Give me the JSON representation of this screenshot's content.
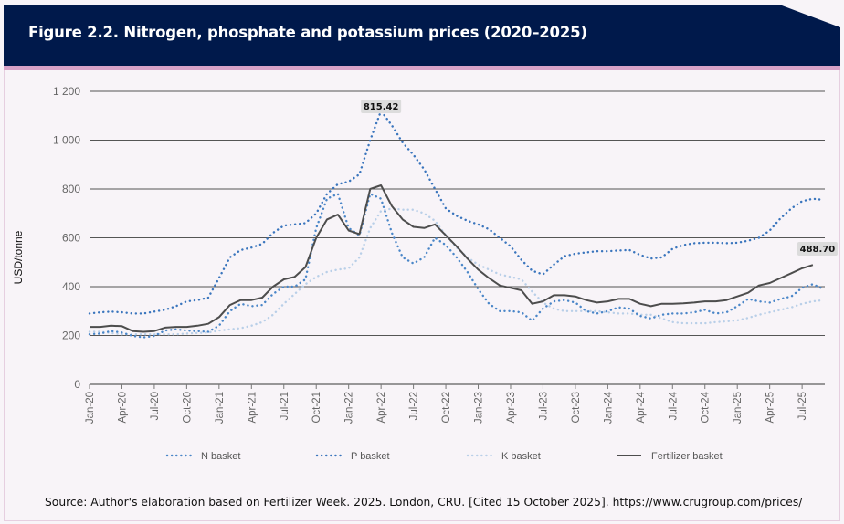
{
  "header": {
    "title": "Figure 2.2. Nitrogen, phosphate and potassium prices (2020–2025)"
  },
  "source": "Source: Author's elaboration based on Fertilizer Week. 2025. London, CRU. [Cited 15 October 2025]. https://www.crugroup.com/prices/",
  "chart_data": {
    "type": "line",
    "title": "Figure 2.2. Nitrogen, phosphate and potassium prices (2020–2025)",
    "ylabel": "USD/tonne",
    "xlabel": "",
    "ylim": [
      0,
      1200
    ],
    "yticks": [
      0,
      200,
      400,
      600,
      800,
      1000,
      1200
    ],
    "ytick_labels": [
      "0",
      "200",
      "400",
      "600",
      "800",
      "1 000",
      "1 200"
    ],
    "grid": "horizontal",
    "legend": "bottom",
    "x": [
      "Jan-20",
      "Feb-20",
      "Mar-20",
      "Apr-20",
      "May-20",
      "Jun-20",
      "Jul-20",
      "Aug-20",
      "Sep-20",
      "Oct-20",
      "Nov-20",
      "Dec-20",
      "Jan-21",
      "Feb-21",
      "Mar-21",
      "Apr-21",
      "May-21",
      "Jun-21",
      "Jul-21",
      "Aug-21",
      "Sep-21",
      "Oct-21",
      "Nov-21",
      "Dec-21",
      "Jan-22",
      "Feb-22",
      "Mar-22",
      "Apr-22",
      "May-22",
      "Jun-22",
      "Jul-22",
      "Aug-22",
      "Sep-22",
      "Oct-22",
      "Nov-22",
      "Dec-22",
      "Jan-23",
      "Feb-23",
      "Mar-23",
      "Apr-23",
      "May-23",
      "Jun-23",
      "Jul-23",
      "Aug-23",
      "Sep-23",
      "Oct-23",
      "Nov-23",
      "Dec-23",
      "Jan-24",
      "Feb-24",
      "Mar-24",
      "Apr-24",
      "May-24",
      "Jun-24",
      "Jul-24",
      "Aug-24",
      "Sep-24",
      "Oct-24",
      "Nov-24",
      "Dec-24",
      "Jan-25",
      "Feb-25",
      "Mar-25",
      "Apr-25",
      "May-25",
      "Jun-25",
      "Jul-25",
      "Aug-25",
      "Sep-25"
    ],
    "xtick_labels": [
      "Jan-20",
      "Apr-20",
      "Jul-20",
      "Oct-20",
      "Jan-21",
      "Apr-21",
      "Jul-21",
      "Oct-21",
      "Jan-22",
      "Apr-22",
      "Jul-22",
      "Oct-22",
      "Jan-23",
      "Apr-23",
      "Jul-23",
      "Oct-23",
      "Jan-24",
      "Apr-24",
      "Jul-24",
      "Oct-24",
      "Jan-25",
      "Apr-25",
      "Jul-25"
    ],
    "series": [
      {
        "name": "N basket",
        "color": "#4a86c8",
        "style": "dotted",
        "values": [
          205,
          208,
          218,
          212,
          198,
          192,
          198,
          220,
          225,
          220,
          218,
          215,
          240,
          300,
          330,
          320,
          325,
          370,
          400,
          400,
          430,
          640,
          760,
          780,
          640,
          610,
          780,
          760,
          620,
          520,
          495,
          520,
          600,
          570,
          520,
          460,
          390,
          330,
          300,
          300,
          295,
          260,
          310,
          340,
          345,
          335,
          300,
          290,
          300,
          315,
          310,
          280,
          270,
          285,
          290,
          290,
          295,
          305,
          290,
          295,
          320,
          350,
          340,
          335,
          350,
          360,
          395,
          410,
          390
        ]
      },
      {
        "name": "P basket",
        "color": "#3a75bd",
        "style": "dotted",
        "values": [
          290,
          295,
          298,
          295,
          290,
          290,
          298,
          305,
          320,
          340,
          345,
          355,
          435,
          520,
          550,
          560,
          575,
          620,
          650,
          655,
          660,
          700,
          780,
          820,
          830,
          860,
          1000,
          1120,
          1060,
          990,
          940,
          880,
          800,
          720,
          690,
          670,
          655,
          635,
          600,
          565,
          510,
          465,
          450,
          490,
          525,
          535,
          540,
          545,
          545,
          548,
          550,
          530,
          515,
          520,
          555,
          570,
          578,
          580,
          580,
          578,
          580,
          588,
          600,
          630,
          680,
          720,
          750,
          760,
          755
        ]
      },
      {
        "name": "K basket",
        "color": "#b9cfe8",
        "style": "dotted",
        "values": [
          215,
          215,
          210,
          205,
          205,
          205,
          205,
          205,
          205,
          208,
          210,
          212,
          220,
          225,
          230,
          240,
          255,
          285,
          330,
          370,
          410,
          440,
          460,
          470,
          475,
          520,
          640,
          710,
          720,
          715,
          715,
          700,
          670,
          610,
          560,
          520,
          490,
          470,
          450,
          440,
          430,
          380,
          335,
          310,
          300,
          300,
          300,
          300,
          295,
          290,
          290,
          285,
          285,
          270,
          255,
          250,
          250,
          250,
          255,
          258,
          262,
          272,
          285,
          295,
          305,
          315,
          330,
          340,
          345
        ]
      },
      {
        "name": "Fertilizer basket",
        "color": "#4d4d4d",
        "style": "solid",
        "values": [
          235,
          235,
          240,
          238,
          218,
          215,
          218,
          232,
          235,
          235,
          240,
          248,
          275,
          325,
          345,
          345,
          355,
          400,
          430,
          440,
          480,
          600,
          675,
          695,
          630,
          615,
          800,
          815,
          730,
          675,
          645,
          640,
          655,
          610,
          565,
          515,
          470,
          435,
          405,
          395,
          385,
          330,
          340,
          365,
          365,
          360,
          345,
          335,
          340,
          350,
          350,
          330,
          320,
          330,
          330,
          332,
          335,
          340,
          340,
          345,
          360,
          375,
          405,
          415,
          435,
          455,
          475,
          489,
          null
        ]
      }
    ],
    "annotations": [
      {
        "text": "815.42",
        "x": "Apr-22",
        "series": "Fertilizer basket"
      },
      {
        "text": "488.70",
        "x": "Aug-25",
        "series": "Fertilizer basket"
      }
    ]
  }
}
